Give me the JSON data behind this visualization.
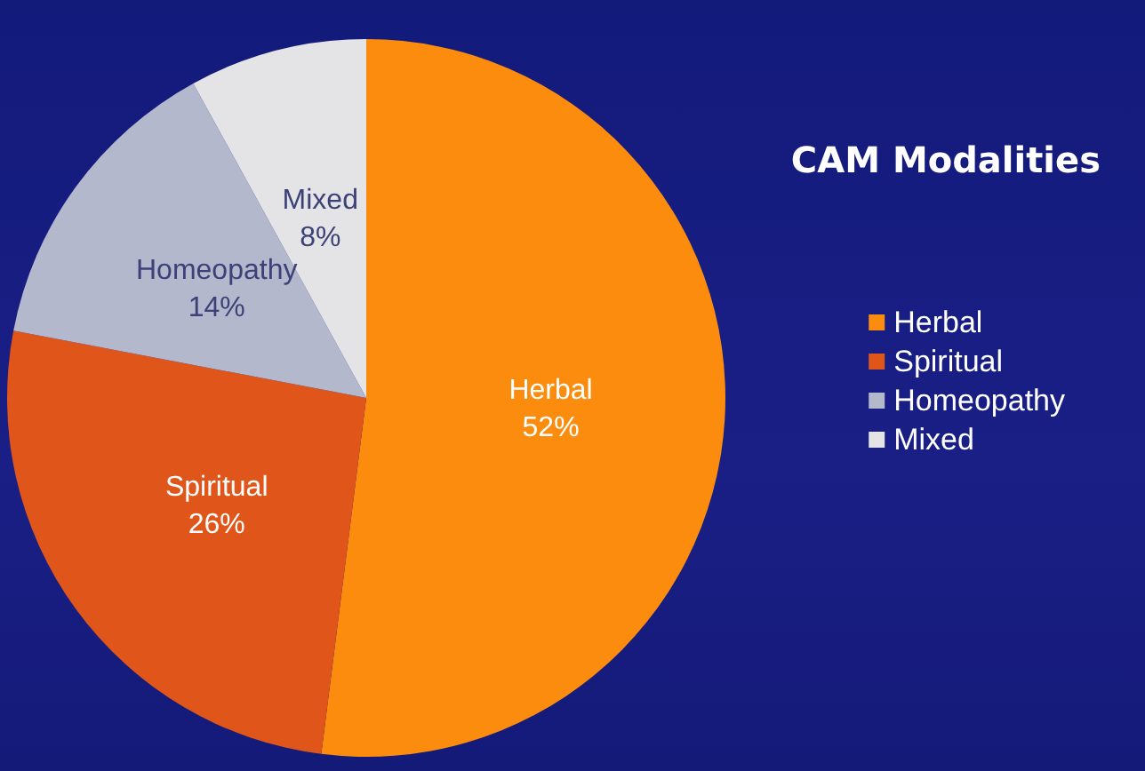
{
  "chart_data": {
    "type": "pie",
    "title": "CAM Modalities",
    "categories": [
      "Herbal",
      "Spiritual",
      "Homeopathy",
      "Mixed"
    ],
    "values": [
      52,
      26,
      14,
      8
    ],
    "colors": [
      "#fb8c0e",
      "#e0561a",
      "#b4b8cc",
      "#e4e4e6"
    ],
    "value_labels": [
      "52%",
      "26%",
      "14%",
      "8%"
    ],
    "legend": "right"
  }
}
